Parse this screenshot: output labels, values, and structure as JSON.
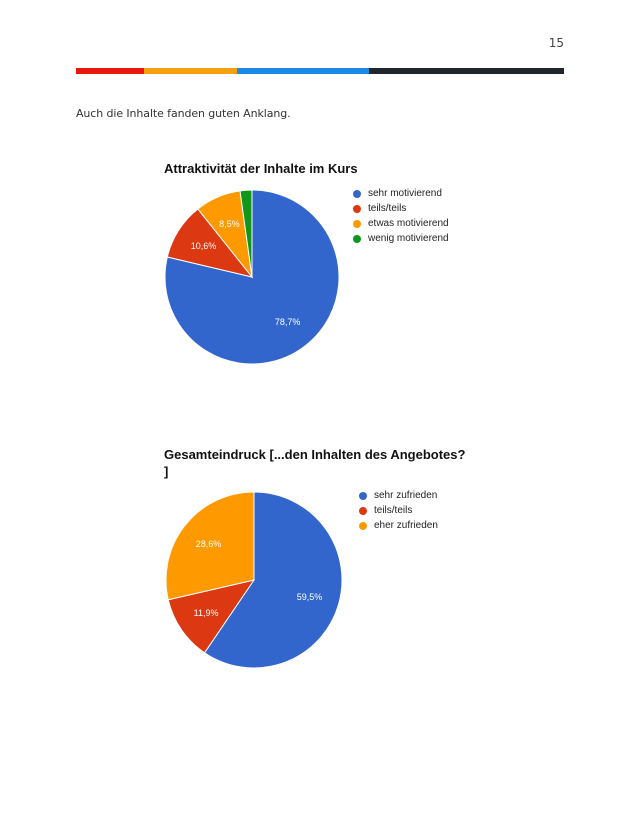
{
  "page": {
    "number": "15",
    "intro_text": "Auch die Inhalte fanden guten Anklang.",
    "color_bar": [
      {
        "color": "#e8170f",
        "share": 0.14
      },
      {
        "color": "#f6a00d",
        "share": 0.19
      },
      {
        "color": "#1e88e5",
        "share": 0.27
      },
      {
        "color": "#1f262e",
        "share": 0.4
      }
    ]
  },
  "chart_data": [
    {
      "type": "pie",
      "title": "Attraktivität der Inhalte im Kurs",
      "legend_position": "right",
      "slices": [
        {
          "label": "sehr motivierend",
          "value": 78.7,
          "display": "78,7%",
          "color": "#3366cc"
        },
        {
          "label": "teils/teils",
          "value": 10.6,
          "display": "10,6%",
          "color": "#dc3912"
        },
        {
          "label": "etwas motivierend",
          "value": 8.5,
          "display": "8,5%",
          "color": "#ff9900"
        },
        {
          "label": "wenig motivierend",
          "value": 2.2,
          "display": "",
          "color": "#109618"
        }
      ]
    },
    {
      "type": "pie",
      "title": "Gesamteindruck [...den Inhalten des Angebotes?\n]",
      "legend_position": "right",
      "slices": [
        {
          "label": "sehr zufrieden",
          "value": 59.5,
          "display": "59,5%",
          "color": "#3366cc"
        },
        {
          "label": "teils/teils",
          "value": 11.9,
          "display": "11,9%",
          "color": "#dc3912"
        },
        {
          "label": "eher zufrieden",
          "value": 28.6,
          "display": "28,6%",
          "color": "#ff9900"
        }
      ]
    }
  ]
}
